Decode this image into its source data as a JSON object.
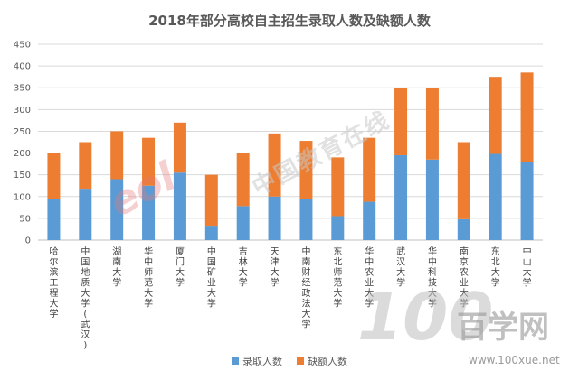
{
  "chart_data": {
    "type": "bar",
    "stacked": true,
    "title": "2018年部分高校自主招生录取人数及缺额人数",
    "categories": [
      "哈尔滨工程大学",
      "中国地质大学(武汉)",
      "湖南大学",
      "华中师范大学",
      "厦门大学",
      "中国矿业大学",
      "吉林大学",
      "天津大学",
      "中南财经政法大学",
      "东北师范大学",
      "华中农业大学",
      "武汉大学",
      "华中科技大学",
      "南京农业大学",
      "东北大学",
      "中山大学"
    ],
    "series": [
      {
        "name": "录取人数",
        "color": "#5B9BD5",
        "values": [
          95,
          118,
          140,
          125,
          155,
          33,
          78,
          100,
          95,
          55,
          88,
          195,
          185,
          48,
          198,
          180
        ]
      },
      {
        "name": "缺额人数",
        "color": "#ED7D31",
        "values": [
          105,
          107,
          110,
          110,
          115,
          117,
          122,
          145,
          133,
          135,
          147,
          155,
          165,
          177,
          177,
          205
        ]
      }
    ],
    "ylim": [
      0,
      450
    ],
    "yticks": [
      "0",
      "50",
      "100",
      "150",
      "200",
      "250",
      "300",
      "350",
      "400",
      "450"
    ],
    "grid": true,
    "legend_position": "bottom"
  },
  "watermarks": {
    "cn": "中国教育在线",
    "eol": "eol",
    "hundred": "100",
    "baixue": "百学网",
    "url": "www.100xue.net"
  }
}
